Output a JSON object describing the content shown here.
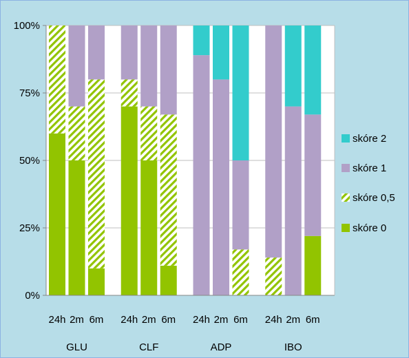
{
  "chart_data": {
    "type": "bar",
    "stacked": true,
    "percent": true,
    "groups": [
      "GLU",
      "CLF",
      "ADP",
      "IBO"
    ],
    "time_labels": [
      "24h",
      "2m",
      "6m"
    ],
    "y_ticks": [
      "0%",
      "25%",
      "50%",
      "75%",
      "100%"
    ],
    "ylim": [
      0,
      100
    ],
    "grid": true,
    "legend_position": "right",
    "series": [
      {
        "name": "skóre 0",
        "color": "#92c400",
        "values": [
          60,
          50,
          10,
          70,
          50,
          11,
          0,
          0,
          0,
          0,
          0,
          22
        ]
      },
      {
        "name": "skóre 0,5",
        "color": "#92c400",
        "pattern": "hatched",
        "values": [
          40,
          20,
          70,
          10,
          20,
          56,
          0,
          0,
          17,
          14,
          0,
          0
        ]
      },
      {
        "name": "skóre 1",
        "color": "#b1a0c7",
        "values": [
          0,
          30,
          20,
          20,
          30,
          33,
          89,
          80,
          33,
          86,
          70,
          45
        ]
      },
      {
        "name": "skóre 2",
        "color": "#33cccc",
        "values": [
          0,
          0,
          0,
          0,
          0,
          0,
          11,
          20,
          50,
          0,
          30,
          33
        ]
      }
    ],
    "legend_order": [
      "skóre 2",
      "skóre 1",
      "skóre 0,5",
      "skóre 0"
    ]
  }
}
